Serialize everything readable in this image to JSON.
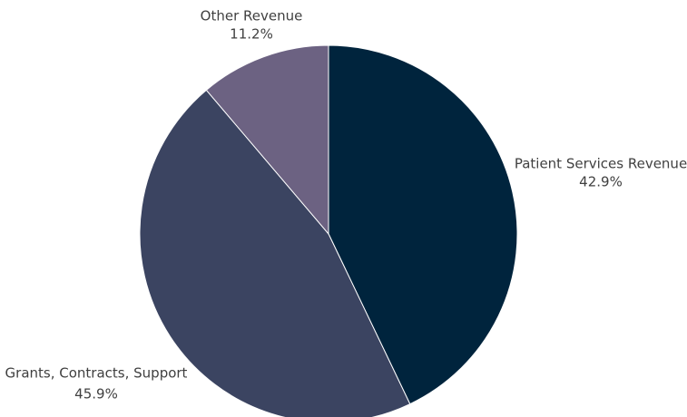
{
  "chart_data": {
    "type": "pie",
    "categories": [
      "Patient Services Revenue",
      "Grants, Contracts, Support",
      "Other Revenue"
    ],
    "values": [
      42.9,
      45.9,
      11.2
    ],
    "value_labels": [
      "42.9%",
      "45.9%",
      "11.2%"
    ],
    "colors": [
      "#00243d",
      "#3b4461",
      "#6c6282"
    ]
  }
}
